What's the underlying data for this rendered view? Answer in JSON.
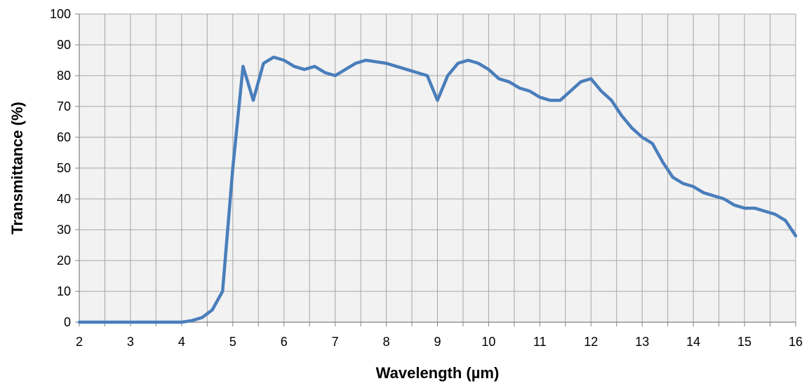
{
  "chart_data": {
    "type": "line",
    "xlabel": "Wavelength  (µm)",
    "ylabel": "Transmittance (%)",
    "xlim": [
      2,
      16
    ],
    "ylim": [
      0,
      100
    ],
    "x_ticks": [
      2,
      3,
      4,
      5,
      6,
      7,
      8,
      9,
      10,
      11,
      12,
      13,
      14,
      15,
      16
    ],
    "y_ticks": [
      0,
      10,
      20,
      30,
      40,
      50,
      60,
      70,
      80,
      90,
      100
    ],
    "x_grid_step": 0.5,
    "y_grid_step": 10,
    "grid": true,
    "legend": "none",
    "colors": {
      "line": "#4a7ebb",
      "plot_background": "#f2f2f2",
      "grid": "#a6a6a6",
      "axis": "#808080"
    },
    "series": [
      {
        "x": [
          2.0,
          3.0,
          4.0,
          4.2,
          4.4,
          4.6,
          4.8,
          4.9,
          5.0,
          5.2,
          5.4,
          5.6,
          5.8,
          6.0,
          6.2,
          6.4,
          6.6,
          6.8,
          7.0,
          7.2,
          7.4,
          7.6,
          7.8,
          8.0,
          8.2,
          8.4,
          8.6,
          8.8,
          9.0,
          9.2,
          9.4,
          9.6,
          9.8,
          10.0,
          10.2,
          10.4,
          10.6,
          10.8,
          11.0,
          11.2,
          11.4,
          11.6,
          11.8,
          12.0,
          12.2,
          12.4,
          12.6,
          12.8,
          13.0,
          13.2,
          13.4,
          13.6,
          13.8,
          14.0,
          14.2,
          14.4,
          14.6,
          14.8,
          15.0,
          15.2,
          15.4,
          15.6,
          15.8,
          16.0
        ],
        "values": [
          0,
          0,
          0,
          0.5,
          1.5,
          4,
          10,
          30,
          50,
          83,
          72,
          84,
          86,
          85,
          83,
          82,
          83,
          81,
          80,
          82,
          84,
          85,
          84.5,
          84,
          83,
          82,
          81,
          80,
          72,
          80,
          84,
          85,
          84,
          82,
          79,
          78,
          76,
          75,
          73,
          72,
          72,
          75,
          78,
          79,
          75,
          72,
          67,
          63,
          60,
          58,
          52,
          47,
          45,
          44,
          42,
          41,
          40,
          38,
          37,
          37,
          36,
          35,
          33,
          28
        ]
      }
    ]
  }
}
